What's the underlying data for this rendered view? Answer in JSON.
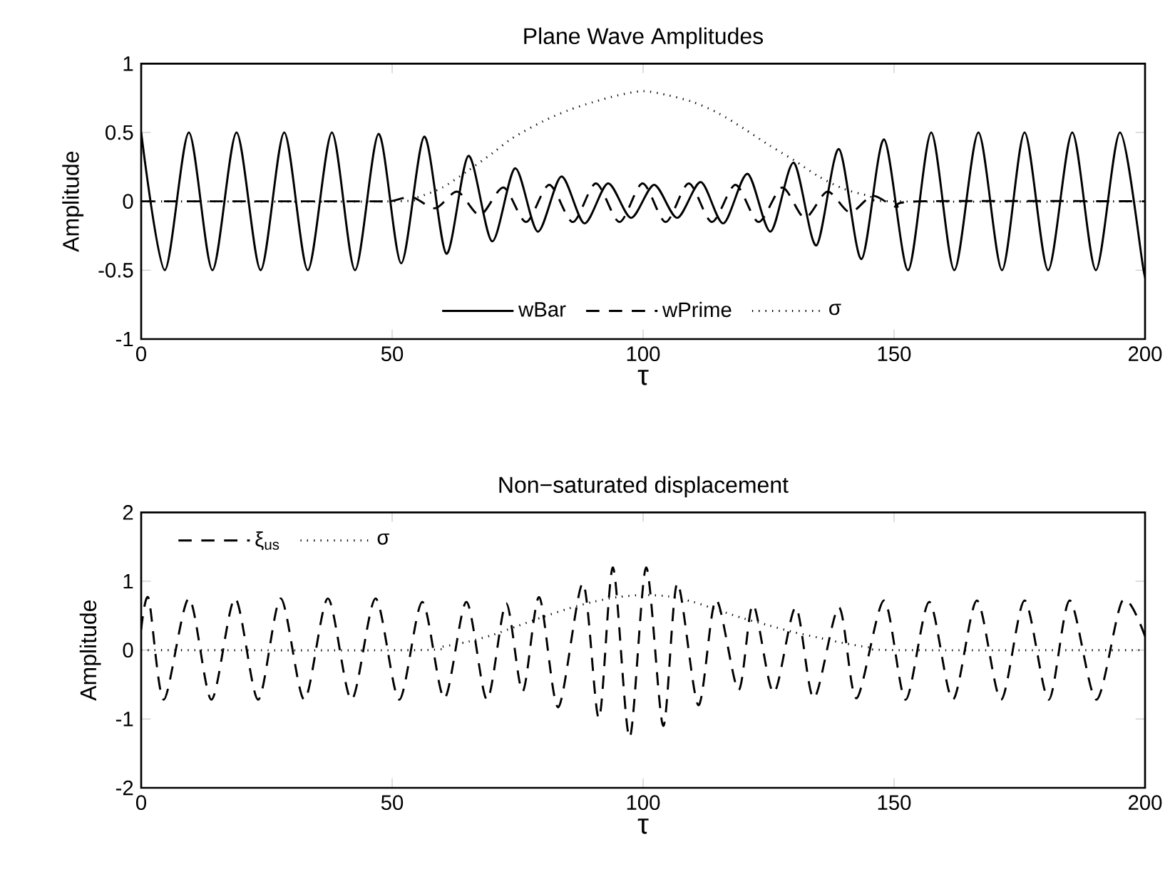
{
  "chart_data": [
    {
      "type": "line",
      "title": "Plane Wave Amplitudes",
      "xlabel": "τ",
      "ylabel": "Amplitude",
      "xlim": [
        0,
        200
      ],
      "ylim": [
        -1,
        1
      ],
      "xticks": [
        0,
        50,
        100,
        150,
        200
      ],
      "yticks": [
        -1,
        -0.5,
        0,
        0.5,
        1
      ],
      "legend": "bottom",
      "series": [
        {
          "name": "wBar",
          "color": "#000000",
          "line_style": "solid",
          "x": [
            0,
            4.7,
            9.5,
            14.2,
            19,
            23.8,
            28.5,
            33.2,
            38,
            42.6,
            47.3,
            51.8,
            56.4,
            60.8,
            65.2,
            69.9,
            74.5,
            79,
            83.7,
            88.3,
            93,
            97.6,
            102.2,
            106.8,
            111.5,
            116,
            120.8,
            125.4,
            130,
            134.5,
            139,
            143.5,
            148,
            152.8,
            157.4,
            162,
            166.8,
            171.5,
            176,
            180.7,
            185.5,
            190.2,
            195,
            199.7,
            200
          ],
          "values": [
            0.5,
            -0.5,
            0.5,
            -0.5,
            0.5,
            -0.5,
            0.5,
            -0.5,
            0.5,
            -0.5,
            0.49,
            -0.45,
            0.47,
            -0.38,
            0.33,
            -0.29,
            0.24,
            -0.22,
            0.18,
            -0.16,
            0.13,
            -0.12,
            0.12,
            -0.12,
            0.14,
            -0.16,
            0.2,
            -0.22,
            0.28,
            -0.32,
            0.38,
            -0.42,
            0.45,
            -0.5,
            0.5,
            -0.5,
            0.5,
            -0.5,
            0.5,
            -0.5,
            0.5,
            -0.5,
            0.5,
            -0.5,
            -0.49
          ]
        },
        {
          "name": "wPrime",
          "color": "#000000",
          "line_style": "dashed",
          "x": [
            0,
            45,
            49.5,
            54,
            58.6,
            63,
            67.5,
            72.2,
            76.7,
            81.3,
            86,
            90.6,
            95.3,
            99.9,
            104.5,
            109.1,
            113.7,
            118.4,
            123,
            127.7,
            132.2,
            136.7,
            141.2,
            145.7,
            150.4,
            155,
            200
          ],
          "values": [
            0,
            0,
            0,
            0.03,
            -0.05,
            0.07,
            -0.1,
            0.1,
            -0.15,
            0.12,
            -0.15,
            0.13,
            -0.15,
            0.13,
            -0.15,
            0.13,
            -0.15,
            0.12,
            -0.15,
            0.1,
            -0.12,
            0.07,
            -0.08,
            0.04,
            -0.04,
            0,
            0
          ]
        },
        {
          "name": "σ",
          "color": "#000000",
          "line_style": "dotted",
          "x": [
            0,
            50,
            55,
            60,
            65,
            70,
            74,
            80,
            85,
            90,
            95,
            100,
            105,
            110,
            115,
            120,
            125,
            130,
            135,
            140,
            145,
            150,
            200
          ],
          "values": [
            0,
            0,
            0.03,
            0.1,
            0.22,
            0.35,
            0.46,
            0.58,
            0.66,
            0.72,
            0.77,
            0.8,
            0.77,
            0.72,
            0.64,
            0.53,
            0.41,
            0.3,
            0.18,
            0.09,
            0.04,
            0,
            0
          ]
        }
      ]
    },
    {
      "type": "line",
      "title": "Non−saturated displacement",
      "xlabel": "τ",
      "ylabel": "Amplitude",
      "xlim": [
        0,
        200
      ],
      "ylim": [
        -2,
        2
      ],
      "xticks": [
        0,
        50,
        100,
        150,
        200
      ],
      "yticks": [
        -2,
        -1,
        0,
        1,
        2
      ],
      "legend": "top left",
      "series": [
        {
          "name": "ξ$_{us}$",
          "color": "#000000",
          "line_style": "dashed",
          "x": [
            0,
            1.5,
            4.5,
            9.5,
            14,
            18.7,
            23.3,
            27.8,
            32.5,
            37.2,
            41.9,
            46.7,
            51.4,
            56,
            60.4,
            64.8,
            68.9,
            72.7,
            76,
            79.3,
            83.1,
            88,
            91.2,
            94,
            97.3,
            100.6,
            104,
            106.8,
            111,
            114.5,
            119,
            121.9,
            126,
            130.4,
            134,
            139,
            142.5,
            148,
            152.3,
            157,
            161.7,
            166.5,
            171.3,
            176,
            180.8,
            185,
            190.3,
            195.5,
            200
          ],
          "values": [
            0.3,
            0.75,
            -0.72,
            0.75,
            -0.72,
            0.75,
            -0.72,
            0.75,
            -0.72,
            0.75,
            -0.72,
            0.75,
            -0.72,
            0.7,
            -0.7,
            0.7,
            -0.72,
            0.68,
            -0.6,
            0.77,
            -0.83,
            0.97,
            -0.99,
            1.2,
            -1.27,
            1.2,
            -1.1,
            0.97,
            -0.8,
            0.73,
            -0.58,
            0.66,
            -0.62,
            0.62,
            -0.7,
            0.62,
            -0.7,
            0.72,
            -0.72,
            0.7,
            -0.72,
            0.72,
            -0.72,
            0.72,
            -0.72,
            0.72,
            -0.72,
            0.72,
            0.2
          ]
        },
        {
          "name": "σ",
          "color": "#000000",
          "line_style": "dotted",
          "x": [
            0,
            55,
            60,
            65,
            70,
            75,
            80,
            85,
            90,
            95,
            100,
            105,
            110,
            115,
            120,
            125,
            130,
            135,
            140,
            145,
            150,
            200
          ],
          "values": [
            0,
            0,
            0.05,
            0.12,
            0.22,
            0.35,
            0.48,
            0.6,
            0.7,
            0.77,
            0.8,
            0.78,
            0.7,
            0.58,
            0.46,
            0.36,
            0.26,
            0.18,
            0.1,
            0.04,
            0,
            0
          ]
        }
      ]
    }
  ]
}
